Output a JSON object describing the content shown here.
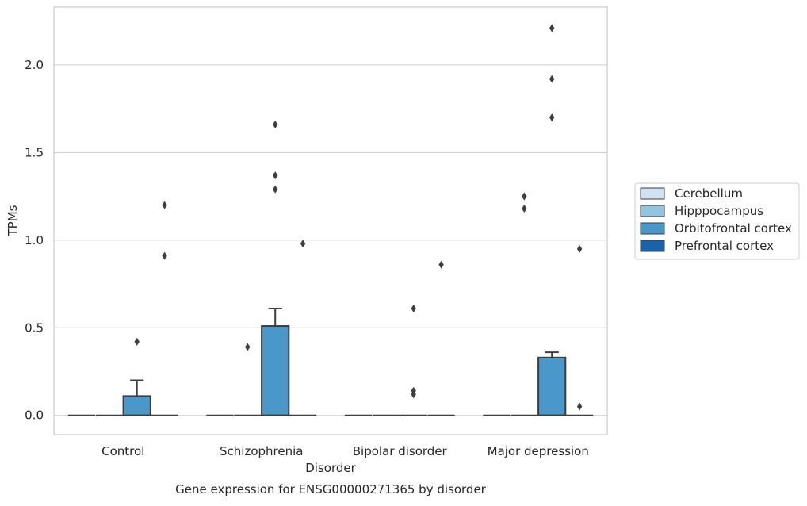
{
  "chart_data": {
    "type": "box",
    "title": "",
    "caption": "Gene expression for ENSG00000271365 by disorder",
    "xlabel": "Disorder",
    "ylabel": "TPMs",
    "ylim": [
      -0.11,
      2.33
    ],
    "yticks": [
      0.0,
      0.5,
      1.0,
      1.5,
      2.0
    ],
    "ytick_labels": [
      "0.0",
      "0.5",
      "1.0",
      "1.5",
      "2.0"
    ],
    "grid": "horizontal",
    "legend_position": "right",
    "categories": [
      "Control",
      "Schizophrenia",
      "Bipolar disorder",
      "Major depression"
    ],
    "series": [
      {
        "name": "Cerebellum",
        "color": "#d0e1f2",
        "boxes": [
          {
            "category": "Control",
            "q1": 0,
            "median": 0,
            "q3": 0,
            "whisker_low": 0,
            "whisker_high": 0,
            "outliers": []
          },
          {
            "category": "Schizophrenia",
            "q1": 0,
            "median": 0,
            "q3": 0,
            "whisker_low": 0,
            "whisker_high": 0,
            "outliers": []
          },
          {
            "category": "Bipolar disorder",
            "q1": 0,
            "median": 0,
            "q3": 0,
            "whisker_low": 0,
            "whisker_high": 0,
            "outliers": []
          },
          {
            "category": "Major depression",
            "q1": 0,
            "median": 0,
            "q3": 0,
            "whisker_low": 0,
            "whisker_high": 0,
            "outliers": []
          }
        ]
      },
      {
        "name": "Hipppocampus",
        "color": "#94c4df",
        "boxes": [
          {
            "category": "Control",
            "q1": 0,
            "median": 0,
            "q3": 0,
            "whisker_low": 0,
            "whisker_high": 0,
            "outliers": []
          },
          {
            "category": "Schizophrenia",
            "q1": 0,
            "median": 0,
            "q3": 0,
            "whisker_low": 0,
            "whisker_high": 0,
            "outliers": [
              0.39
            ]
          },
          {
            "category": "Bipolar disorder",
            "q1": 0,
            "median": 0,
            "q3": 0,
            "whisker_low": 0,
            "whisker_high": 0,
            "outliers": []
          },
          {
            "category": "Major depression",
            "q1": 0,
            "median": 0,
            "q3": 0,
            "whisker_low": 0,
            "whisker_high": 0,
            "outliers": [
              1.25,
              1.18
            ]
          }
        ]
      },
      {
        "name": "Orbitofrontal cortex",
        "color": "#4a98c9",
        "boxes": [
          {
            "category": "Control",
            "q1": 0,
            "median": 0,
            "q3": 0.11,
            "whisker_low": 0,
            "whisker_high": 0.2,
            "outliers": [
              0.42
            ]
          },
          {
            "category": "Schizophrenia",
            "q1": 0,
            "median": 0,
            "q3": 0.51,
            "whisker_low": 0,
            "whisker_high": 0.61,
            "outliers": [
              1.66,
              1.37,
              1.29
            ]
          },
          {
            "category": "Bipolar disorder",
            "q1": 0,
            "median": 0,
            "q3": 0,
            "whisker_low": 0,
            "whisker_high": 0,
            "outliers": [
              0.61,
              0.14,
              0.12
            ]
          },
          {
            "category": "Major depression",
            "q1": 0,
            "median": 0,
            "q3": 0.33,
            "whisker_low": 0,
            "whisker_high": 0.36,
            "outliers": [
              2.21,
              1.92,
              1.7
            ]
          }
        ]
      },
      {
        "name": "Prefrontal cortex",
        "color": "#1764ab",
        "boxes": [
          {
            "category": "Control",
            "q1": 0,
            "median": 0,
            "q3": 0,
            "whisker_low": 0,
            "whisker_high": 0,
            "outliers": [
              1.2,
              0.91
            ]
          },
          {
            "category": "Schizophrenia",
            "q1": 0,
            "median": 0,
            "q3": 0,
            "whisker_low": 0,
            "whisker_high": 0,
            "outliers": [
              0.98
            ]
          },
          {
            "category": "Bipolar disorder",
            "q1": 0,
            "median": 0,
            "q3": 0,
            "whisker_low": 0,
            "whisker_high": 0,
            "outliers": [
              0.86
            ]
          },
          {
            "category": "Major depression",
            "q1": 0,
            "median": 0,
            "q3": 0,
            "whisker_low": 0,
            "whisker_high": 0,
            "outliers": [
              0.95,
              0.05
            ]
          }
        ]
      }
    ]
  }
}
